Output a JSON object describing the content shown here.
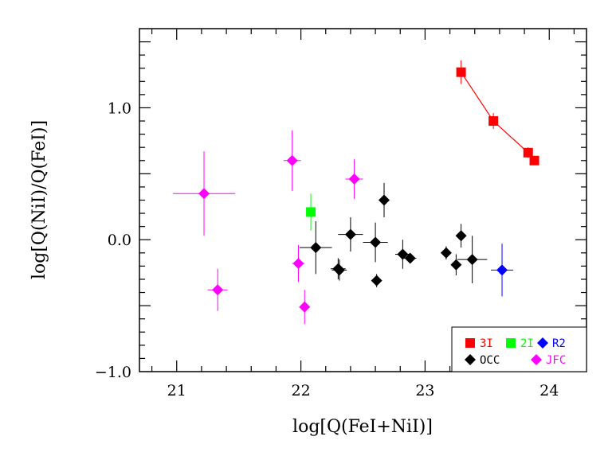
{
  "chart_data": {
    "type": "scatter",
    "title": "",
    "xlabel": "log[Q(FeI+NiI)]",
    "ylabel": "log[Q(NiI)/Q(FeI)]",
    "xlim": [
      20.7,
      24.3
    ],
    "ylim": [
      -1.0,
      1.6
    ],
    "x_ticks": [
      21,
      22,
      23,
      24
    ],
    "x_tick_labels": [
      "21",
      "22",
      "23",
      "24"
    ],
    "y_ticks": [
      -1.0,
      0.0,
      1.0
    ],
    "y_tick_labels": [
      "−1.0",
      "0.0",
      "1.0"
    ],
    "grid": false,
    "legend_position": "bottom-right",
    "series": [
      {
        "name": "3I",
        "color": "#ff0000",
        "marker": "square",
        "connected": true,
        "points": [
          {
            "x": 23.29,
            "y": 1.27,
            "xerr": 0.0,
            "yerr": 0.09
          },
          {
            "x": 23.55,
            "y": 0.9,
            "xerr": 0.0,
            "yerr": 0.06
          },
          {
            "x": 23.83,
            "y": 0.66,
            "xerr": 0.0,
            "yerr": 0.04
          },
          {
            "x": 23.88,
            "y": 0.6,
            "xerr": 0.0,
            "yerr": 0.03
          }
        ]
      },
      {
        "name": "2I",
        "color": "#00ff00",
        "marker": "square",
        "connected": false,
        "points": [
          {
            "x": 22.08,
            "y": 0.21,
            "xerr": 0.0,
            "yerr": 0.14
          }
        ]
      },
      {
        "name": "R2",
        "color": "#0000ff",
        "marker": "diamond",
        "connected": false,
        "points": [
          {
            "x": 23.62,
            "y": -0.23,
            "xerr": 0.09,
            "yerr": 0.2
          }
        ]
      },
      {
        "name": "OCC",
        "color": "#000000",
        "marker": "diamond",
        "connected": false,
        "points": [
          {
            "x": 22.12,
            "y": -0.06,
            "xerr": 0.13,
            "yerr": 0.2
          },
          {
            "x": 22.3,
            "y": -0.22,
            "xerr": 0.06,
            "yerr": 0.08
          },
          {
            "x": 22.31,
            "y": -0.23,
            "xerr": 0.06,
            "yerr": 0.08
          },
          {
            "x": 22.4,
            "y": 0.04,
            "xerr": 0.1,
            "yerr": 0.13
          },
          {
            "x": 22.6,
            "y": -0.02,
            "xerr": 0.1,
            "yerr": 0.15
          },
          {
            "x": 22.61,
            "y": -0.31,
            "xerr": 0.0,
            "yerr": 0.05
          },
          {
            "x": 22.67,
            "y": 0.3,
            "xerr": 0.03,
            "yerr": 0.13
          },
          {
            "x": 22.82,
            "y": -0.11,
            "xerr": 0.06,
            "yerr": 0.11
          },
          {
            "x": 22.88,
            "y": -0.14,
            "xerr": 0.05,
            "yerr": 0.03
          },
          {
            "x": 23.17,
            "y": -0.1,
            "xerr": 0.03,
            "yerr": 0.05
          },
          {
            "x": 23.25,
            "y": -0.19,
            "xerr": 0.04,
            "yerr": 0.08
          },
          {
            "x": 23.29,
            "y": 0.03,
            "xerr": 0.0,
            "yerr": 0.09
          },
          {
            "x": 23.38,
            "y": -0.15,
            "xerr": 0.12,
            "yerr": 0.18
          }
        ]
      },
      {
        "name": "JFC",
        "color": "#ff00ff",
        "marker": "diamond",
        "connected": false,
        "points": [
          {
            "x": 21.22,
            "y": 0.35,
            "xerr": 0.25,
            "yerr": 0.32
          },
          {
            "x": 21.33,
            "y": -0.38,
            "xerr": 0.08,
            "yerr": 0.16
          },
          {
            "x": 21.93,
            "y": 0.6,
            "xerr": 0.07,
            "yerr": 0.23
          },
          {
            "x": 21.98,
            "y": -0.18,
            "xerr": 0.05,
            "yerr": 0.14
          },
          {
            "x": 22.03,
            "y": -0.51,
            "xerr": 0.04,
            "yerr": 0.13
          },
          {
            "x": 22.43,
            "y": 0.46,
            "xerr": 0.07,
            "yerr": 0.15
          }
        ]
      }
    ]
  }
}
